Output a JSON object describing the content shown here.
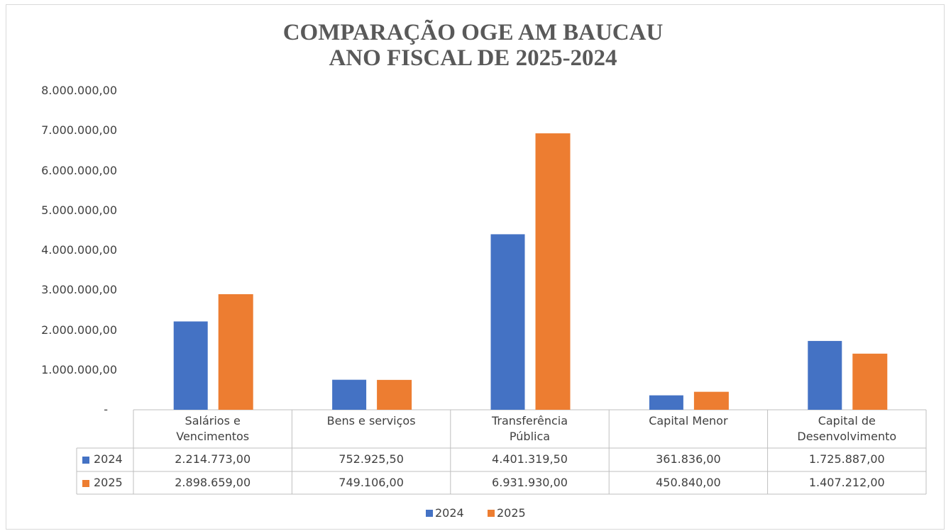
{
  "chart_data": {
    "type": "bar",
    "title": "COMPARAÇÃO OGE AM BAUCAU\nANO FISCAL DE 2025-2024",
    "categories": [
      "Salários e\nVencimentos",
      "Bens e serviços",
      "Transferência\nPública",
      "Capital Menor",
      "Capital de\nDesenvolvimento"
    ],
    "series": [
      {
        "name": "2024",
        "color": "#4472c4",
        "values": [
          2214773,
          752925.5,
          4401319.5,
          361836,
          1725887
        ],
        "value_labels": [
          "2.214.773,00",
          "752.925,50",
          "4.401.319,50",
          "361.836,00",
          "1.725.887,00"
        ]
      },
      {
        "name": "2025",
        "color": "#ed7d31",
        "values": [
          2898659,
          749106,
          6931930,
          450840,
          1407212
        ],
        "value_labels": [
          "2.898.659,00",
          "749.106,00",
          "6.931.930,00",
          "450.840,00",
          "1.407.212,00"
        ]
      }
    ],
    "ylim": [
      0,
      8000000
    ],
    "yticks": [
      {
        "value": 0,
        "label": "-"
      },
      {
        "value": 1000000,
        "label": "1.000.000,00"
      },
      {
        "value": 2000000,
        "label": "2.000.000,00"
      },
      {
        "value": 3000000,
        "label": "3.000.000,00"
      },
      {
        "value": 4000000,
        "label": "4.000.000,00"
      },
      {
        "value": 5000000,
        "label": "5.000.000,00"
      },
      {
        "value": 6000000,
        "label": "6.000.000,00"
      },
      {
        "value": 7000000,
        "label": "7.000.000,00"
      },
      {
        "value": 8000000,
        "label": "8.000.000,00"
      }
    ],
    "legend": "bottom"
  }
}
